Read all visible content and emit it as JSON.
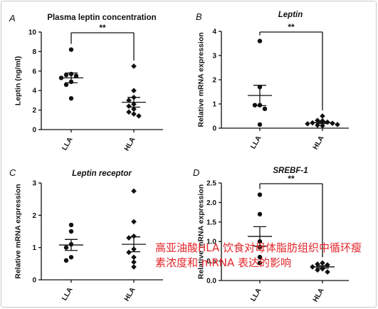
{
  "figure": {
    "overlay_caption": {
      "lines": [
        "高亚油酸HLA 饮食对母体脂肪组织中循环瘦",
        "素浓度和 mRNA 表达的影响"
      ],
      "color": "#e3262b"
    }
  },
  "chart_data": [
    {
      "panel": "A",
      "type": "scatter",
      "title": "Plasma leptin concentration",
      "title_italic": false,
      "xlabel": "",
      "ylabel": "Leptin (ng/ml)",
      "ylim": [
        0,
        10
      ],
      "yticks": [
        "0",
        "2",
        "4",
        "6",
        "8",
        "10"
      ],
      "categories": [
        "LLA",
        "HLA"
      ],
      "series": [
        {
          "name": "LLA",
          "marker": "circle",
          "values": [
            8.2,
            5.7,
            5.6,
            5.5,
            5.3,
            4.9,
            4.6,
            3.2
          ],
          "mean": 5.3,
          "sem": 0.5
        },
        {
          "name": "HLA",
          "marker": "diamond",
          "values": [
            6.5,
            4.0,
            3.3,
            3.0,
            2.6,
            2.4,
            2.1,
            1.8,
            1.6,
            1.4
          ],
          "mean": 2.8,
          "sem": 0.5
        }
      ],
      "significance": {
        "label": "**"
      }
    },
    {
      "panel": "B",
      "type": "scatter",
      "title": "Leptin",
      "title_italic": true,
      "xlabel": "",
      "ylabel": "Relative mRNA expression",
      "ylim": [
        0,
        4
      ],
      "yticks": [
        "0",
        "1",
        "2",
        "3",
        "4"
      ],
      "categories": [
        "LLA",
        "HLA"
      ],
      "series": [
        {
          "name": "LLA",
          "marker": "circle",
          "values": [
            3.6,
            1.7,
            0.95,
            0.95,
            0.8,
            0.15
          ],
          "mean": 1.35,
          "sem": 0.42
        },
        {
          "name": "HLA",
          "marker": "diamond",
          "values": [
            0.5,
            0.32,
            0.3,
            0.25,
            0.22,
            0.2,
            0.18,
            0.15,
            0.12,
            0.1
          ],
          "mean": 0.23,
          "sem": 0.04
        }
      ],
      "significance": {
        "label": "**"
      }
    },
    {
      "panel": "C",
      "type": "scatter",
      "title": "Leptin receptor",
      "title_italic": true,
      "xlabel": "",
      "ylabel": "Relative mRNA expression",
      "ylim": [
        0,
        3
      ],
      "yticks": [
        "0",
        "1",
        "2",
        "3"
      ],
      "categories": [
        "LLA",
        "HLA"
      ],
      "series": [
        {
          "name": "LLA",
          "marker": "circle",
          "values": [
            1.7,
            1.5,
            1.1,
            1.0,
            0.7,
            0.6
          ],
          "mean": 1.08,
          "sem": 0.17
        },
        {
          "name": "HLA",
          "marker": "diamond",
          "values": [
            2.75,
            1.8,
            1.35,
            1.3,
            0.95,
            0.85,
            0.7,
            0.55,
            0.4
          ],
          "mean": 1.1,
          "sem": 0.23
        }
      ]
    },
    {
      "panel": "D",
      "type": "scatter",
      "title": "SREBF-1",
      "title_italic": true,
      "xlabel": "",
      "ylabel": "Relative mRNA expression",
      "ylim": [
        0,
        2.5
      ],
      "yticks": [
        "0.0",
        "0.5",
        "1.0",
        "1.5",
        "2.0",
        "2.5"
      ],
      "categories": [
        "LLA",
        "HLA"
      ],
      "series": [
        {
          "name": "LLA",
          "marker": "circle",
          "values": [
            2.2,
            1.7,
            1.0,
            0.85,
            0.6,
            0.45
          ],
          "mean": 1.13,
          "sem": 0.25
        },
        {
          "name": "HLA",
          "marker": "diamond",
          "values": [
            0.45,
            0.42,
            0.4,
            0.35,
            0.3,
            0.27,
            0.22
          ],
          "mean": 0.35,
          "sem": 0.03
        }
      ],
      "significance": {
        "label": "**"
      }
    }
  ]
}
